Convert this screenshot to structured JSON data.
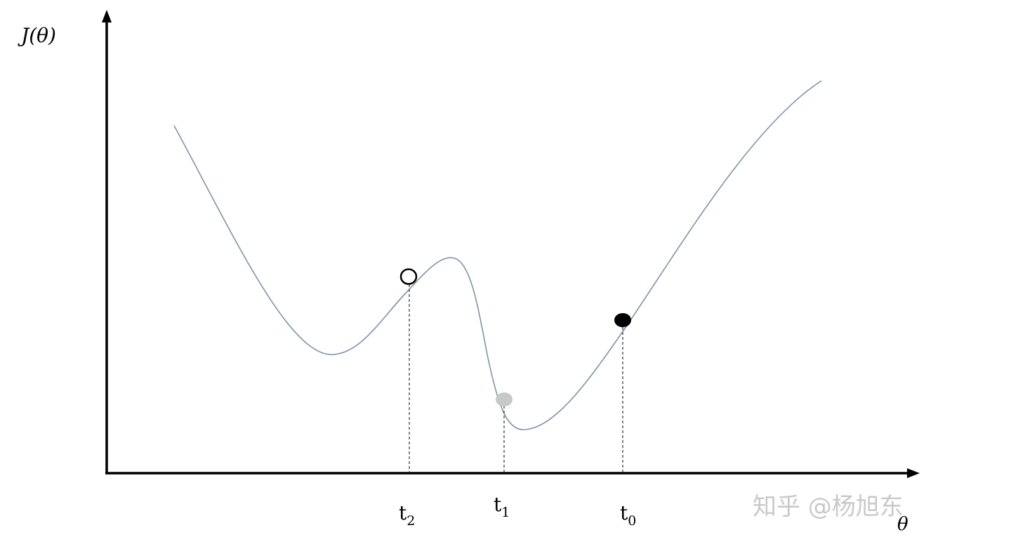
{
  "axes": {
    "y_label": "J(θ)",
    "x_label": "θ"
  },
  "ticks": [
    {
      "base": "t",
      "sub": "2"
    },
    {
      "base": "t",
      "sub": "1"
    },
    {
      "base": "t",
      "sub": "0"
    }
  ],
  "markers": [
    {
      "id": "t2",
      "style": "hollow",
      "stroke": "#000000",
      "fill": "#ffffff"
    },
    {
      "id": "t1",
      "style": "filled",
      "stroke": "#c8c8c8",
      "fill": "#c8c8c8"
    },
    {
      "id": "t0",
      "style": "filled",
      "stroke": "#000000",
      "fill": "#000000"
    }
  ],
  "colors": {
    "curve": "#7f93ab",
    "axes": "#000000",
    "dashed": "#333333",
    "watermark": "#c9c9c9"
  },
  "watermark": "知乎 @杨旭东"
}
